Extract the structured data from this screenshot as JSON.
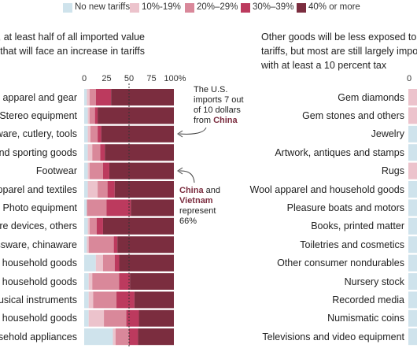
{
  "legend": [
    {
      "label": "No new tariffs",
      "color": "#cfe3ec"
    },
    {
      "label": "10%-19%",
      "color": "#ecc3cc"
    },
    {
      "label": "20%–29%",
      "color": "#d9889a"
    },
    {
      "label": "30%–39%",
      "color": "#bc3a5e"
    },
    {
      "label": "40% or more",
      "color": "#7b2d3f"
    }
  ],
  "left_subhead": [
    ", at least half of all imported value",
    "that will face an increase in tariffs"
  ],
  "right_subhead": [
    "Other goods will be less exposed to th",
    "tariffs, but most are still largely impor",
    "with at least a 10 percent tax"
  ],
  "annotation_china": {
    "pre": "The U.S. imports 7 out of 10 dollars from",
    "highlight": "China"
  },
  "annotation_vietnam": {
    "hl1": "China",
    "mid": "and",
    "hl2": "Vietnam",
    "post": "represent 66%"
  },
  "chart_data": [
    {
      "type": "bar",
      "orientation": "horizontal",
      "stacked": true,
      "xlim": [
        0,
        100
      ],
      "xticks": [
        "0",
        "25",
        "50",
        "75",
        "100%"
      ],
      "series_names": [
        "No new tariffs",
        "10%-19%",
        "20%–29%",
        "30%–39%",
        "40% or more"
      ],
      "categories": [
        "g apparel and gear",
        "Stereo equipment",
        "ware, cutlery, tools",
        "and sporting goods",
        "Footwear",
        "apparel and textiles",
        "Photo equipment",
        "re devices, others",
        "ssware, chinaware",
        "l household goods",
        "l household goods",
        "usical instruments",
        "l household goods",
        "sehold appliances"
      ],
      "values": [
        [
          3,
          3,
          7,
          17,
          70
        ],
        [
          4,
          2,
          6,
          3,
          85
        ],
        [
          4,
          3,
          8,
          4,
          81
        ],
        [
          4,
          5,
          9,
          5,
          77
        ],
        [
          4,
          2,
          15,
          7,
          72
        ],
        [
          4,
          11,
          11,
          8,
          66
        ],
        [
          3,
          0,
          22,
          27,
          48
        ],
        [
          4,
          2,
          8,
          7,
          79
        ],
        [
          3,
          2,
          28,
          4,
          63
        ],
        [
          13,
          8,
          13,
          5,
          61
        ],
        [
          5,
          4,
          30,
          12,
          49
        ],
        [
          5,
          5,
          26,
          20,
          44
        ],
        [
          5,
          17,
          25,
          14,
          39
        ],
        [
          32,
          3,
          15,
          10,
          40
        ]
      ]
    },
    {
      "type": "bar",
      "orientation": "horizontal",
      "stacked": true,
      "xticks": [
        "0"
      ],
      "categories": [
        "Gem diamonds",
        "Gem stones and others",
        "Jewelry",
        "Artwork, antiques and stamps",
        "Rugs",
        "Wool apparel and household goods",
        "Pleasure boats and motors",
        "Books, printed matter",
        "Toiletries and cosmetics",
        "Other consumer nondurables",
        "Nursery stock",
        "Recorded media",
        "Numismatic coins",
        "Televisions and video equipment"
      ],
      "first_segment": [
        "#ecc3cc",
        "#ecc3cc",
        "#cfe3ec",
        "#cfe3ec",
        "#ecc3cc",
        "#cfe3ec",
        "#cfe3ec",
        "#cfe3ec",
        "#cfe3ec",
        "#cfe3ec",
        "#cfe3ec",
        "#cfe3ec",
        "#cfe3ec",
        "#cfe3ec"
      ]
    }
  ]
}
